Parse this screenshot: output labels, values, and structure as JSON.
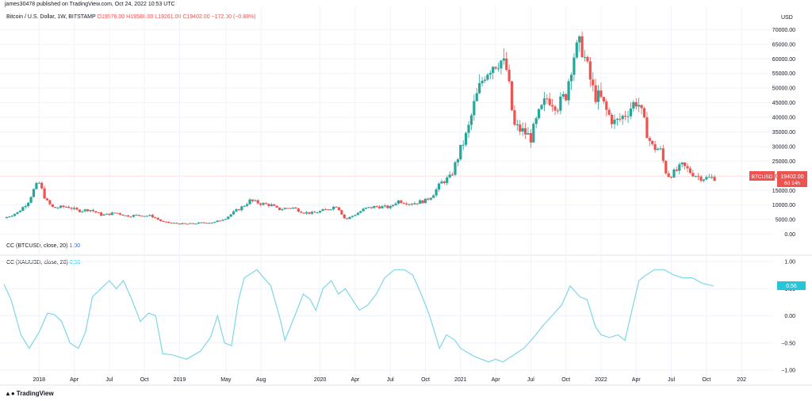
{
  "header": {
    "publisher": "james30478 published on TradingView.com, Oct 24, 2022 10:53 UTC",
    "symbol_title": "Bitcoin / U.S. Dollar, 1W, BITSTAMP",
    "ohlc": "O19576.00  H19588.00  L19261.00  C19402.00  −172.00 (−0.88%)"
  },
  "indicators": [
    {
      "label": "CC (BTCUSD, close, 20)",
      "value": "1.00"
    },
    {
      "label": "CC (XAUUSD, close, 20)",
      "value": "0.56"
    }
  ],
  "price_badge": {
    "symbol": "BTCUSD",
    "price": "19402.00",
    "countdown": "6d 14h"
  },
  "cc_badge": "0.56",
  "watermark": "TradingView",
  "colors": {
    "up": "#26a69a",
    "down": "#ef5350",
    "cc_line": "#7fd6e8",
    "cc_badge": "#26c6da",
    "grid": "#f0f3fa"
  },
  "chart_data": [
    {
      "type": "candlestick",
      "title": "Bitcoin / U.S. Dollar, 1W, BITSTAMP",
      "ylabel": "USD",
      "ylim": [
        -2000,
        72000
      ],
      "yticks": [
        "70000.00",
        "65000.00",
        "60000.00",
        "55000.00",
        "50000.00",
        "45000.00",
        "40000.00",
        "35000.00",
        "30000.00",
        "25000.00",
        "20000.00",
        "15000.00",
        "10000.00",
        "5000.00",
        "0.00"
      ],
      "ytick_values": [
        70000,
        65000,
        60000,
        55000,
        50000,
        45000,
        40000,
        35000,
        30000,
        25000,
        20000,
        15000,
        10000,
        5000,
        0
      ],
      "xticks": [
        "2018",
        "Apr",
        "Jul",
        "Oct",
        "2019",
        "May",
        "Aug",
        "2020",
        "Apr",
        "Jul",
        "Oct",
        "2021",
        "Apr",
        "Jul",
        "Oct",
        "2022",
        "Apr",
        "Jul",
        "Oct",
        "202"
      ],
      "xtick_times": [
        2018.0,
        2018.25,
        2018.5,
        2018.75,
        2019.0,
        2019.33,
        2019.58,
        2020.0,
        2020.25,
        2020.5,
        2020.75,
        2021.0,
        2021.25,
        2021.5,
        2021.75,
        2022.0,
        2022.25,
        2022.5,
        2022.75,
        2023.0
      ],
      "xlim": [
        2017.75,
        2023.05
      ],
      "last_price": 19402,
      "close_path": [
        [
          2017.75,
          5500
        ],
        [
          2017.85,
          7500
        ],
        [
          2017.92,
          11000
        ],
        [
          2017.97,
          16000
        ],
        [
          2018.0,
          17500
        ],
        [
          2018.05,
          11500
        ],
        [
          2018.1,
          9000
        ],
        [
          2018.2,
          9500
        ],
        [
          2018.28,
          8000
        ],
        [
          2018.36,
          8500
        ],
        [
          2018.45,
          6500
        ],
        [
          2018.55,
          7400
        ],
        [
          2018.62,
          6300
        ],
        [
          2018.7,
          6500
        ],
        [
          2018.8,
          6300
        ],
        [
          2018.88,
          4200
        ],
        [
          2018.95,
          3800
        ],
        [
          2019.05,
          3500
        ],
        [
          2019.15,
          3900
        ],
        [
          2019.25,
          4100
        ],
        [
          2019.33,
          5600
        ],
        [
          2019.4,
          8000
        ],
        [
          2019.45,
          9500
        ],
        [
          2019.5,
          11500
        ],
        [
          2019.58,
          10500
        ],
        [
          2019.65,
          10000
        ],
        [
          2019.7,
          8500
        ],
        [
          2019.8,
          9200
        ],
        [
          2019.88,
          7500
        ],
        [
          2019.95,
          7200
        ],
        [
          2020.05,
          8500
        ],
        [
          2020.12,
          9800
        ],
        [
          2020.18,
          5000
        ],
        [
          2020.25,
          6800
        ],
        [
          2020.32,
          8800
        ],
        [
          2020.4,
          9500
        ],
        [
          2020.5,
          9200
        ],
        [
          2020.55,
          11500
        ],
        [
          2020.65,
          10500
        ],
        [
          2020.75,
          11500
        ],
        [
          2020.8,
          13500
        ],
        [
          2020.87,
          18000
        ],
        [
          2020.93,
          19500
        ],
        [
          2021.0,
          29000
        ],
        [
          2021.05,
          35000
        ],
        [
          2021.1,
          45000
        ],
        [
          2021.17,
          55000
        ],
        [
          2021.22,
          58000
        ],
        [
          2021.28,
          60000
        ],
        [
          2021.33,
          56000
        ],
        [
          2021.38,
          37000
        ],
        [
          2021.45,
          35000
        ],
        [
          2021.5,
          33000
        ],
        [
          2021.55,
          40000
        ],
        [
          2021.62,
          47000
        ],
        [
          2021.7,
          44000
        ],
        [
          2021.75,
          48000
        ],
        [
          2021.8,
          61000
        ],
        [
          2021.86,
          65000
        ],
        [
          2021.9,
          57000
        ],
        [
          2021.95,
          48000
        ],
        [
          2022.0,
          46000
        ],
        [
          2022.05,
          41000
        ],
        [
          2022.1,
          38000
        ],
        [
          2022.15,
          40000
        ],
        [
          2022.22,
          44000
        ],
        [
          2022.26,
          46000
        ],
        [
          2022.3,
          39000
        ],
        [
          2022.36,
          30000
        ],
        [
          2022.42,
          29000
        ],
        [
          2022.47,
          20000
        ],
        [
          2022.52,
          21000
        ],
        [
          2022.58,
          23500
        ],
        [
          2022.63,
          21500
        ],
        [
          2022.7,
          19500
        ],
        [
          2022.75,
          19200
        ],
        [
          2022.81,
          19402
        ]
      ]
    },
    {
      "type": "line",
      "title": "CC (XAUUSD, close, 20)",
      "ylim": [
        -1.0,
        1.0
      ],
      "yticks": [
        "1.00",
        "0.50",
        "0.00",
        "−0.50",
        "−1.00"
      ],
      "ytick_values": [
        1.0,
        0.5,
        0.0,
        -0.5,
        -1.0
      ],
      "series": [
        {
          "name": "CC (XAUUSD, close, 20)",
          "points": [
            [
              2017.75,
              0.58
            ],
            [
              2017.8,
              0.3
            ],
            [
              2017.87,
              -0.35
            ],
            [
              2017.93,
              -0.6
            ],
            [
              2018.0,
              -0.3
            ],
            [
              2018.06,
              0.05
            ],
            [
              2018.11,
              0.02
            ],
            [
              2018.16,
              -0.1
            ],
            [
              2018.22,
              -0.5
            ],
            [
              2018.28,
              -0.6
            ],
            [
              2018.33,
              -0.3
            ],
            [
              2018.38,
              0.35
            ],
            [
              2018.44,
              0.5
            ],
            [
              2018.5,
              0.65
            ],
            [
              2018.55,
              0.5
            ],
            [
              2018.6,
              0.65
            ],
            [
              2018.66,
              0.3
            ],
            [
              2018.72,
              -0.1
            ],
            [
              2018.78,
              0.05
            ],
            [
              2018.83,
              0.0
            ],
            [
              2018.88,
              -0.7
            ],
            [
              2018.95,
              -0.72
            ],
            [
              2019.05,
              -0.8
            ],
            [
              2019.15,
              -0.65
            ],
            [
              2019.22,
              -0.4
            ],
            [
              2019.27,
              0.0
            ],
            [
              2019.32,
              -0.5
            ],
            [
              2019.37,
              -0.55
            ],
            [
              2019.42,
              0.3
            ],
            [
              2019.46,
              0.7
            ],
            [
              2019.55,
              0.85
            ],
            [
              2019.65,
              0.55
            ],
            [
              2019.72,
              -0.1
            ],
            [
              2019.75,
              -0.45
            ],
            [
              2019.82,
              0.0
            ],
            [
              2019.88,
              0.4
            ],
            [
              2019.93,
              0.3
            ],
            [
              2019.97,
              0.1
            ],
            [
              2020.02,
              0.5
            ],
            [
              2020.08,
              0.65
            ],
            [
              2020.13,
              0.4
            ],
            [
              2020.18,
              0.5
            ],
            [
              2020.23,
              0.3
            ],
            [
              2020.28,
              0.1
            ],
            [
              2020.34,
              0.2
            ],
            [
              2020.4,
              0.4
            ],
            [
              2020.46,
              0.7
            ],
            [
              2020.53,
              0.85
            ],
            [
              2020.6,
              0.85
            ],
            [
              2020.66,
              0.75
            ],
            [
              2020.72,
              0.4
            ],
            [
              2020.78,
              0.0
            ],
            [
              2020.85,
              -0.6
            ],
            [
              2020.9,
              -0.35
            ],
            [
              2020.96,
              -0.45
            ],
            [
              2021.0,
              -0.6
            ],
            [
              2021.1,
              -0.75
            ],
            [
              2021.2,
              -0.85
            ],
            [
              2021.25,
              -0.8
            ],
            [
              2021.3,
              -0.85
            ],
            [
              2021.38,
              -0.72
            ],
            [
              2021.45,
              -0.6
            ],
            [
              2021.52,
              -0.4
            ],
            [
              2021.58,
              -0.2
            ],
            [
              2021.65,
              0.0
            ],
            [
              2021.72,
              0.2
            ],
            [
              2021.78,
              0.55
            ],
            [
              2021.85,
              0.35
            ],
            [
              2021.9,
              0.3
            ],
            [
              2021.96,
              -0.2
            ],
            [
              2022.0,
              -0.35
            ],
            [
              2022.06,
              -0.4
            ],
            [
              2022.12,
              -0.35
            ],
            [
              2022.17,
              -0.45
            ],
            [
              2022.22,
              0.1
            ],
            [
              2022.27,
              0.65
            ],
            [
              2022.32,
              0.75
            ],
            [
              2022.38,
              0.85
            ],
            [
              2022.45,
              0.85
            ],
            [
              2022.52,
              0.75
            ],
            [
              2022.58,
              0.7
            ],
            [
              2022.65,
              0.7
            ],
            [
              2022.72,
              0.6
            ],
            [
              2022.8,
              0.55
            ]
          ]
        }
      ]
    }
  ]
}
